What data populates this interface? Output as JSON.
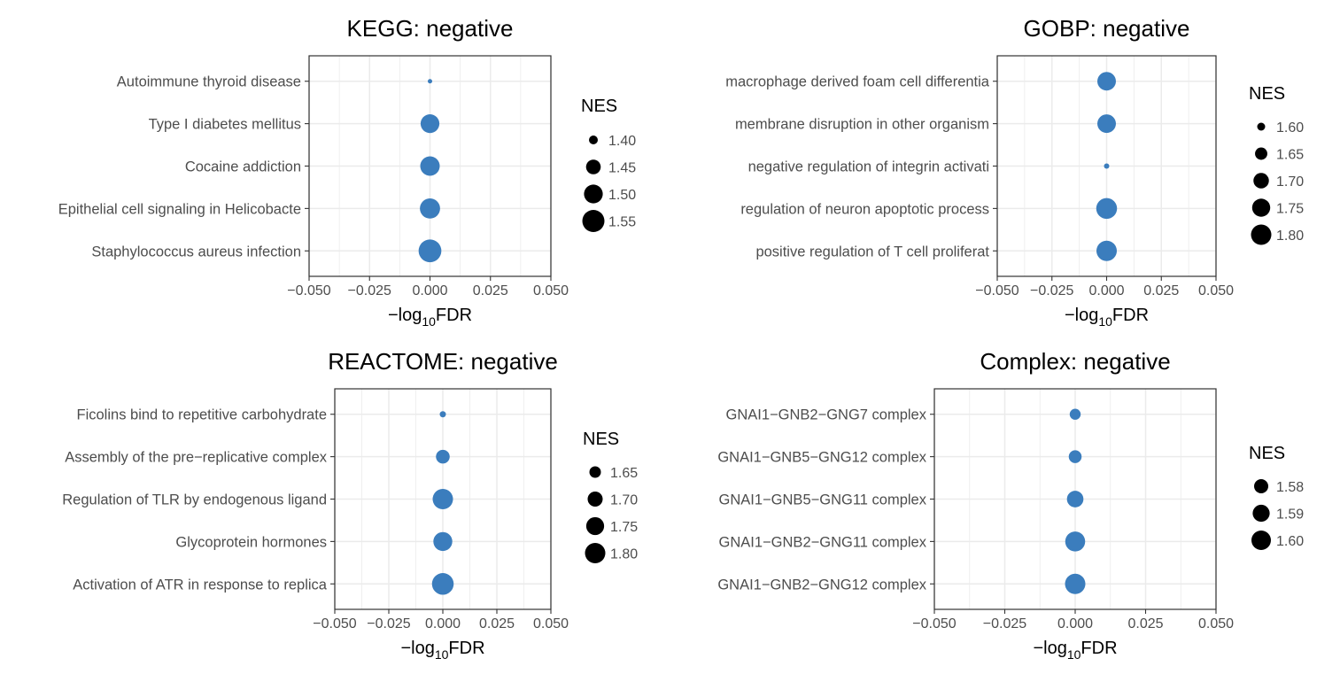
{
  "colors": {
    "point": "#3b7dbd",
    "legend_point": "#000000",
    "grid": "#ebebeb",
    "panel_border": "#333333",
    "text": "#4d4d4d",
    "title": "#000000"
  },
  "chart_data": [
    {
      "type": "scatter",
      "title": "KEGG: negative",
      "xlabel_main": "−log",
      "xlabel_sub": "10",
      "xlabel_tail": "FDR",
      "xlim": [
        -0.05,
        0.05
      ],
      "x_ticks": [
        -0.05,
        -0.025,
        0,
        0.025,
        0.05
      ],
      "x_tick_labels": [
        "−0.050",
        "−0.025",
        "0.000",
        "0.025",
        "0.050"
      ],
      "grid": true,
      "categories": [
        "Autoimmune thyroid disease",
        "Type I diabetes mellitus",
        "Cocaine addiction",
        "Epithelial cell signaling in Helicobacte",
        "Staphylococcus aureus infection"
      ],
      "x": [
        0,
        0,
        0,
        0,
        0
      ],
      "size": [
        1.37,
        1.5,
        1.51,
        1.52,
        1.56
      ],
      "size_legend": {
        "title": "NES",
        "labels": [
          "1.40",
          "1.45",
          "1.50",
          "1.55"
        ],
        "values": [
          1.4,
          1.45,
          1.5,
          1.55
        ]
      }
    },
    {
      "type": "scatter",
      "title": "GOBP: negative",
      "xlabel_main": "−log",
      "xlabel_sub": "10",
      "xlabel_tail": "FDR",
      "xlim": [
        -0.05,
        0.05
      ],
      "x_ticks": [
        -0.05,
        -0.025,
        0,
        0.025,
        0.05
      ],
      "x_tick_labels": [
        "−0.050",
        "−0.025",
        "0.000",
        "0.025",
        "0.050"
      ],
      "grid": true,
      "categories": [
        "macrophage derived foam cell differentia",
        "membrane disruption in other organism",
        "negative regulation of integrin activati",
        "regulation of neuron apoptotic process",
        "positive regulation of T cell proliferat"
      ],
      "x": [
        0,
        0,
        0,
        0,
        0
      ],
      "size": [
        1.76,
        1.76,
        1.58,
        1.81,
        1.8
      ],
      "size_legend": {
        "title": "NES",
        "labels": [
          "1.60",
          "1.65",
          "1.70",
          "1.75",
          "1.80"
        ],
        "values": [
          1.6,
          1.65,
          1.7,
          1.75,
          1.8
        ]
      }
    },
    {
      "type": "scatter",
      "title": "REACTOME: negative",
      "xlabel_main": "−log",
      "xlabel_sub": "10",
      "xlabel_tail": "FDR",
      "xlim": [
        -0.05,
        0.05
      ],
      "x_ticks": [
        -0.05,
        -0.025,
        0,
        0.025,
        0.05
      ],
      "x_tick_labels": [
        "−0.050",
        "−0.025",
        "0.000",
        "0.025",
        "0.050"
      ],
      "grid": true,
      "categories": [
        "Ficolins bind to repetitive carbohydrate",
        "Assembly of the pre−replicative complex",
        "Regulation of TLR by endogenous ligand",
        "Glycoprotein hormones",
        "Activation of ATR in response to replica"
      ],
      "x": [
        0,
        0,
        0,
        0,
        0
      ],
      "size": [
        1.6,
        1.68,
        1.8,
        1.77,
        1.83
      ],
      "size_legend": {
        "title": "NES",
        "labels": [
          "1.65",
          "1.70",
          "1.75",
          "1.80"
        ],
        "values": [
          1.65,
          1.7,
          1.75,
          1.8
        ]
      }
    },
    {
      "type": "scatter",
      "title": "Complex: negative",
      "xlabel_main": "−log",
      "xlabel_sub": "10",
      "xlabel_tail": "FDR",
      "xlim": [
        -0.05,
        0.05
      ],
      "x_ticks": [
        -0.05,
        -0.025,
        0,
        0.025,
        0.05
      ],
      "x_tick_labels": [
        "−0.050",
        "−0.025",
        "0.000",
        "0.025",
        "0.050"
      ],
      "grid": true,
      "categories": [
        "GNAI1−GNB2−GNG7 complex",
        "GNAI1−GNB5−GNG12 complex",
        "GNAI1−GNB5−GNG11 complex",
        "GNAI1−GNB2−GNG11 complex",
        "GNAI1−GNB2−GNG12 complex"
      ],
      "x": [
        0,
        0,
        0,
        0,
        0
      ],
      "size": [
        1.571,
        1.576,
        1.588,
        1.602,
        1.604
      ],
      "size_legend": {
        "title": "NES",
        "labels": [
          "1.58",
          "1.59",
          "1.60"
        ],
        "values": [
          1.58,
          1.59,
          1.6
        ]
      }
    }
  ]
}
